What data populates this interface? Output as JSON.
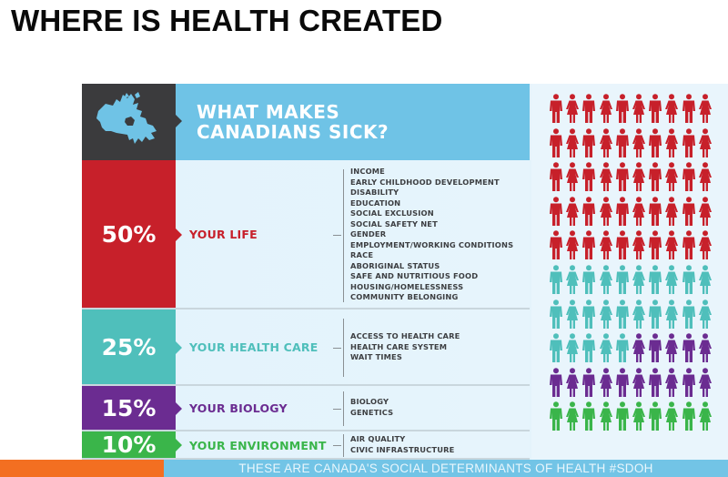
{
  "page": {
    "title": "WHERE IS HEALTH CREATED"
  },
  "header": {
    "title_line1": "WHAT MAKES",
    "title_line2": "CANADIANS SICK?",
    "map_icon": "canada-map-icon",
    "colors": {
      "map_bg": "#3b3b3d",
      "title_bg": "#6fc3e6"
    }
  },
  "rows": [
    {
      "percent": "50%",
      "label": "YOUR LIFE",
      "color": "#c7202a",
      "factors": [
        "INCOME",
        "EARLY CHILDHOOD DEVELOPMENT",
        "DISABILITY",
        "EDUCATION",
        "SOCIAL EXCLUSION",
        "SOCIAL SAFETY NET",
        "GENDER",
        "EMPLOYMENT/WORKING CONDITIONS",
        "RACE",
        "ABORIGINAL STATUS",
        "SAFE AND NUTRITIOUS FOOD",
        "HOUSING/HOMELESSNESS",
        "COMMUNITY BELONGING"
      ]
    },
    {
      "percent": "25%",
      "label": "YOUR HEALTH CARE",
      "color": "#4fbfbb",
      "factors": [
        "ACCESS TO HEALTH CARE",
        "HEALTH CARE SYSTEM",
        "WAIT TIMES"
      ]
    },
    {
      "percent": "15%",
      "label": "YOUR BIOLOGY",
      "color": "#6b2c91",
      "factors": [
        "BIOLOGY",
        "GENETICS"
      ]
    },
    {
      "percent": "10%",
      "label": "YOUR ENVIRONMENT",
      "color": "#3ab54a",
      "factors": [
        "AIR QUALITY",
        "CIVIC INFRASTRUCTURE"
      ]
    }
  ],
  "footer": {
    "text": "THESE ARE CANADA'S SOCIAL DETERMINANTS OF HEALTH  #SDOH",
    "accent_color": "#f36f21",
    "bar_color": "#72c4e6"
  },
  "chart_data": {
    "type": "pictogram",
    "title": "WHAT MAKES CANADIANS SICK?",
    "grid": {
      "columns": 10,
      "rows": 10,
      "total_icons": 100,
      "icon_pattern": "alternating male/female"
    },
    "categories": [
      "YOUR LIFE",
      "YOUR HEALTH CARE",
      "YOUR BIOLOGY",
      "YOUR ENVIRONMENT"
    ],
    "values": [
      50,
      25,
      15,
      10
    ],
    "unit": "%",
    "colors": [
      "#c7202a",
      "#4fbfbb",
      "#6b2c91",
      "#3ab54a"
    ]
  }
}
